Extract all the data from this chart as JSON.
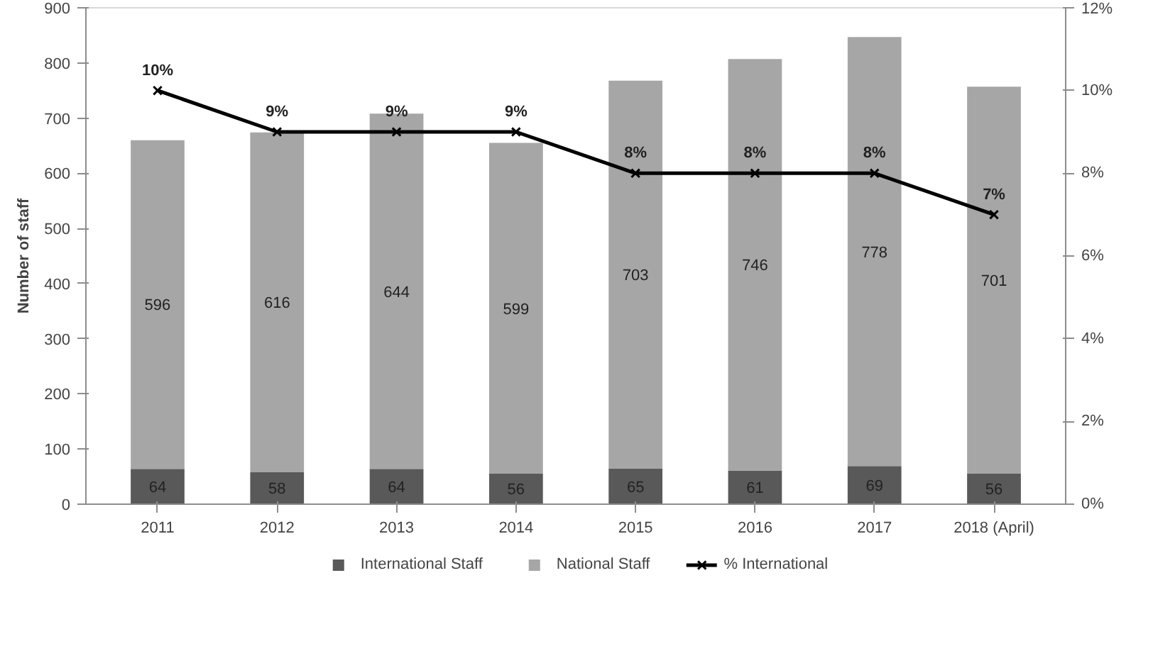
{
  "chart_data": {
    "type": "bar",
    "stacked": true,
    "ylabel": "Number of staff",
    "categories": [
      "2011",
      "2012",
      "2013",
      "2014",
      "2015",
      "2016",
      "2017",
      "2018 (April)"
    ],
    "series": [
      {
        "name": "International Staff",
        "color": "#595959",
        "values": [
          64,
          58,
          64,
          56,
          65,
          61,
          69,
          56
        ],
        "value_labels": [
          "64",
          "58",
          "64",
          "56",
          "65",
          "61",
          "69",
          "56"
        ]
      },
      {
        "name": "National Staff",
        "color": "#a6a6a6",
        "values": [
          596,
          616,
          644,
          599,
          703,
          746,
          778,
          701
        ],
        "value_labels": [
          "596",
          "616",
          "644",
          "599",
          "703",
          "746",
          "778",
          "701"
        ]
      },
      {
        "name": "% International",
        "type": "line",
        "axis": "y2",
        "color": "#000000",
        "marker": "cross",
        "line_style": "solid",
        "values": [
          10,
          9,
          9,
          9,
          8,
          8,
          8,
          7
        ],
        "value_labels": [
          "10%",
          "9%",
          "9%",
          "9%",
          "8%",
          "8%",
          "8%",
          "7%"
        ]
      }
    ],
    "ylim": [
      0,
      900
    ],
    "yticks": [
      0,
      100,
      200,
      300,
      400,
      500,
      600,
      700,
      800,
      900
    ],
    "y2lim": [
      0,
      12
    ],
    "y2ticks": [
      {
        "value": 0,
        "label": "0%"
      },
      {
        "value": 2,
        "label": "2%"
      },
      {
        "value": 4,
        "label": "4%"
      },
      {
        "value": 6,
        "label": "6%"
      },
      {
        "value": 8,
        "label": "8%"
      },
      {
        "value": 10,
        "label": "10%"
      },
      {
        "value": 12,
        "label": "12%"
      }
    ],
    "grid": false,
    "legend": "bottom"
  }
}
